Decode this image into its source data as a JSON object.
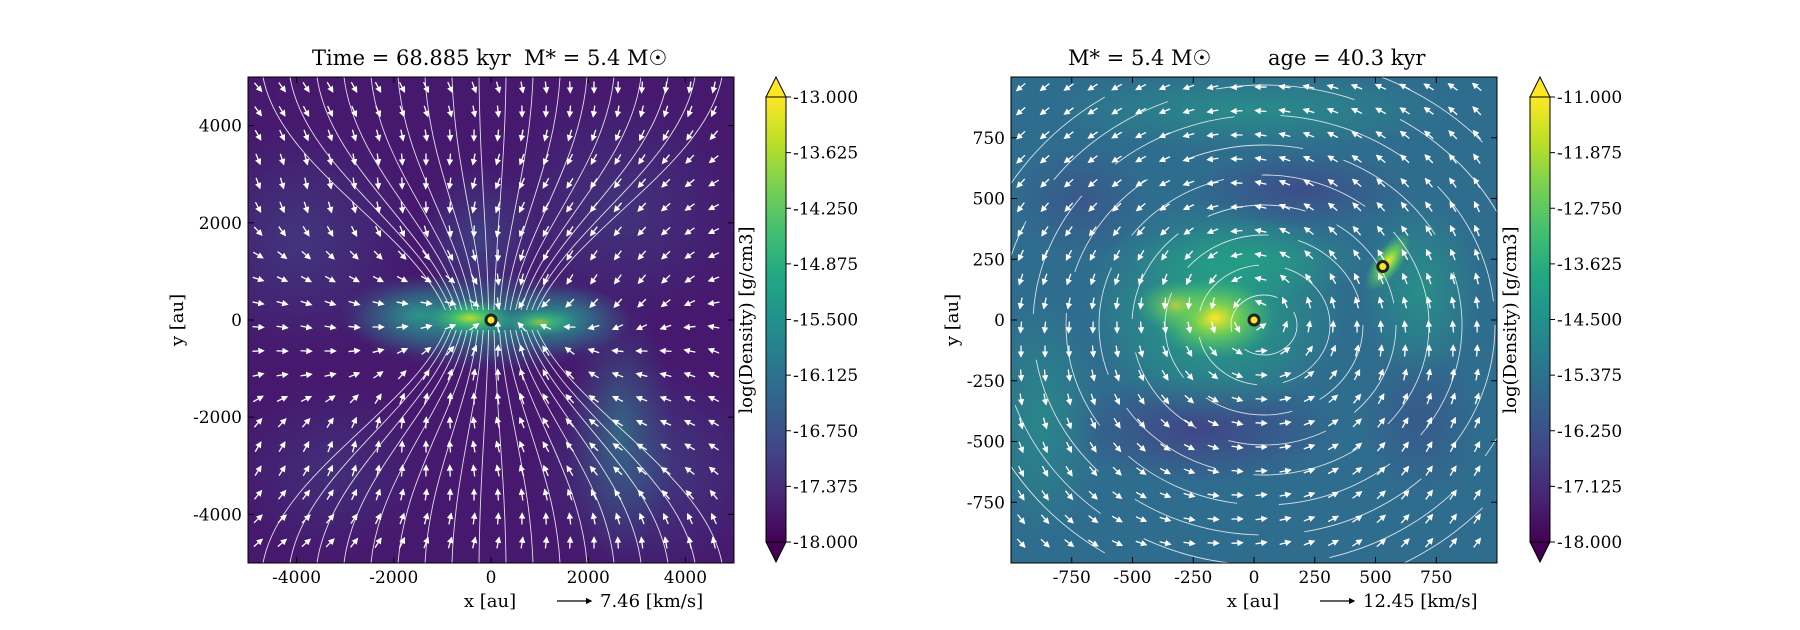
{
  "colorbar_palette": [
    "#440154",
    "#482475",
    "#414487",
    "#355f8d",
    "#2a788e",
    "#21918c",
    "#22a884",
    "#44bf70",
    "#7ad151",
    "#bddf26",
    "#fde725"
  ],
  "chart_data": [
    {
      "type": "heatmap",
      "title_left": "Time = 68.885 kyr",
      "title_right": "M$_*$ = 5.4 M$_\\odot$",
      "title_left_text": "Time = 68.885 kyr",
      "title_right_text": "M* = 5.4 M☉",
      "xlabel": "x [au]",
      "ylabel": "y [au]",
      "xlim": [
        -5000,
        5000
      ],
      "ylim": [
        -5000,
        5000
      ],
      "xticks": [
        -4000,
        -2000,
        0,
        2000,
        4000
      ],
      "yticks": [
        -4000,
        -2000,
        0,
        2000,
        4000
      ],
      "xtick_labels": [
        "-4000",
        "-2000",
        "0",
        "2000",
        "4000"
      ],
      "ytick_labels": [
        "-4000",
        "-2000",
        "0",
        "2000",
        "4000"
      ],
      "velocity_key": "7.46 [km/s]",
      "colorbar_label": "log(Density) [g/cm3]",
      "colorbar_range": [
        -18.0,
        -13.0
      ],
      "colorbar_ticks": [
        "-13.000",
        "-13.625",
        "-14.250",
        "-14.875",
        "-15.500",
        "-16.125",
        "-16.750",
        "-17.375",
        "-18.000"
      ],
      "stars": [
        {
          "x": 0,
          "y": 0
        }
      ]
    },
    {
      "type": "heatmap",
      "title_left_text": "M* = 5.4 M☉",
      "title_right_text": "age = 40.3 kyr",
      "xlabel": "x [au]",
      "ylabel": "y [au]",
      "xlim": [
        -1000,
        1000
      ],
      "ylim": [
        -1000,
        1000
      ],
      "xticks": [
        -750,
        -500,
        -250,
        0,
        250,
        500,
        750
      ],
      "yticks": [
        -750,
        -500,
        -250,
        0,
        250,
        500,
        750
      ],
      "xtick_labels": [
        "-750",
        "-500",
        "-250",
        "0",
        "250",
        "500",
        "750"
      ],
      "ytick_labels": [
        "-750",
        "-500",
        "-250",
        "0",
        "250",
        "500",
        "750"
      ],
      "velocity_key": "12.45 [km/s]",
      "colorbar_label": "log(Density) [g/cm3]",
      "colorbar_range": [
        -18.0,
        -11.0
      ],
      "colorbar_ticks": [
        "-11.000",
        "-11.875",
        "-12.750",
        "-13.625",
        "-14.500",
        "-15.375",
        "-16.250",
        "-17.125",
        "-18.000"
      ],
      "stars": [
        {
          "x": 0,
          "y": 0
        },
        {
          "x": 530,
          "y": 220
        }
      ]
    }
  ]
}
